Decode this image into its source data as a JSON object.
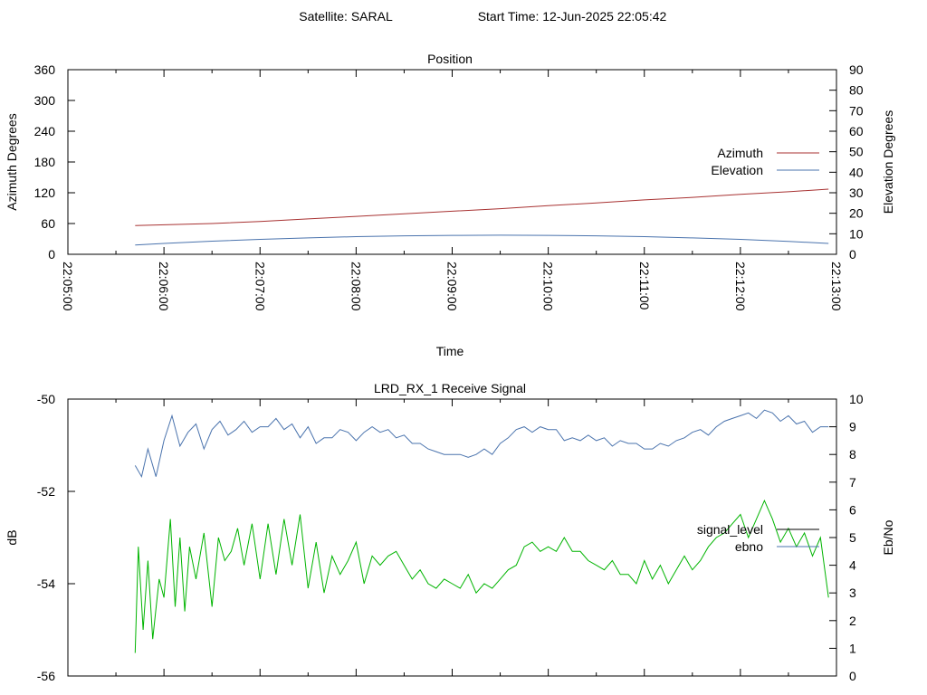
{
  "header": {
    "satellite_text": "Satellite: SARAL",
    "start_text": "Start Time: 12-Jun-2025 22:05:42"
  },
  "colors": {
    "azimuth": "#a83232",
    "elevation": "#4a73ad",
    "signal_level": "#00b400",
    "ebno": "#4a73ad",
    "signal_legend_line": "#000000"
  },
  "chart_data": [
    {
      "type": "line",
      "title": "Position",
      "xlabel": "Time",
      "ylabel": "Azimuth Degrees",
      "y2label": "Elevation Degrees",
      "xlim": [
        "22:05:00",
        "22:13:00"
      ],
      "ylim": [
        0,
        360
      ],
      "y2lim": [
        0,
        90
      ],
      "x_ticks": [
        "22:05:00",
        "22:06:00",
        "22:07:00",
        "22:08:00",
        "22:09:00",
        "22:10:00",
        "22:11:00",
        "22:12:00",
        "22:13:00"
      ],
      "y_ticks": [
        "0",
        "60",
        "120",
        "180",
        "240",
        "300",
        "360"
      ],
      "y2_ticks": [
        "0",
        "10",
        "20",
        "30",
        "40",
        "50",
        "60",
        "70",
        "80",
        "90"
      ],
      "legend_position": "right",
      "series": [
        {
          "name": "Azimuth",
          "axis": "left",
          "x": [
            "22:05:42",
            "22:06:30",
            "22:07:00",
            "22:07:30",
            "22:08:00",
            "22:08:30",
            "22:09:00",
            "22:09:30",
            "22:10:00",
            "22:10:30",
            "22:11:00",
            "22:11:30",
            "22:12:00",
            "22:12:30",
            "22:12:55"
          ],
          "values": [
            56,
            60,
            64,
            69,
            74,
            79,
            84,
            89,
            95,
            100,
            106,
            111,
            117,
            122,
            127
          ]
        },
        {
          "name": "Elevation",
          "axis": "right",
          "x": [
            "22:05:42",
            "22:06:00",
            "22:06:30",
            "22:07:00",
            "22:07:30",
            "22:08:00",
            "22:08:30",
            "22:09:00",
            "22:09:30",
            "22:10:00",
            "22:10:30",
            "22:11:00",
            "22:11:30",
            "22:12:00",
            "22:12:30",
            "22:12:55"
          ],
          "values": [
            4.5,
            5.3,
            6.4,
            7.3,
            8.0,
            8.6,
            9.0,
            9.2,
            9.3,
            9.2,
            9.0,
            8.6,
            8.0,
            7.3,
            6.3,
            5.3
          ]
        }
      ]
    },
    {
      "type": "line",
      "title": "LRD_RX_1 Receive Signal",
      "ylabel": "dB",
      "y2label": "Eb/No",
      "xlim": [
        "22:05:00",
        "22:13:00"
      ],
      "ylim": [
        -56,
        -50
      ],
      "y2lim": [
        0,
        10
      ],
      "y_ticks": [
        "-50",
        "-52",
        "-54",
        "-56"
      ],
      "y2_ticks": [
        "0",
        "1",
        "2",
        "3",
        "4",
        "5",
        "6",
        "7",
        "8",
        "9",
        "10"
      ],
      "legend_position": "right",
      "series": [
        {
          "name": "signal_level",
          "axis": "left",
          "x": [
            "22:05:42",
            "22:05:44",
            "22:05:47",
            "22:05:50",
            "22:05:53",
            "22:05:57",
            "22:06:00",
            "22:06:04",
            "22:06:07",
            "22:06:10",
            "22:06:13",
            "22:06:16",
            "22:06:20",
            "22:06:25",
            "22:06:30",
            "22:06:34",
            "22:06:38",
            "22:06:42",
            "22:06:46",
            "22:06:50",
            "22:06:55",
            "22:07:00",
            "22:07:05",
            "22:07:10",
            "22:07:15",
            "22:07:20",
            "22:07:25",
            "22:07:30",
            "22:07:35",
            "22:07:40",
            "22:07:45",
            "22:07:50",
            "22:07:55",
            "22:08:00",
            "22:08:05",
            "22:08:10",
            "22:08:15",
            "22:08:20",
            "22:08:25",
            "22:08:30",
            "22:08:35",
            "22:08:40",
            "22:08:45",
            "22:08:50",
            "22:08:55",
            "22:09:00",
            "22:09:05",
            "22:09:10",
            "22:09:15",
            "22:09:20",
            "22:09:25",
            "22:09:30",
            "22:09:35",
            "22:09:40",
            "22:09:45",
            "22:09:50",
            "22:09:55",
            "22:10:00",
            "22:10:05",
            "22:10:10",
            "22:10:15",
            "22:10:20",
            "22:10:25",
            "22:10:30",
            "22:10:35",
            "22:10:40",
            "22:10:45",
            "22:10:50",
            "22:10:55",
            "22:11:00",
            "22:11:05",
            "22:11:10",
            "22:11:15",
            "22:11:20",
            "22:11:25",
            "22:11:30",
            "22:11:35",
            "22:11:40",
            "22:11:45",
            "22:11:50",
            "22:11:55",
            "22:12:00",
            "22:12:05",
            "22:12:10",
            "22:12:15",
            "22:12:20",
            "22:12:25",
            "22:12:30",
            "22:12:35",
            "22:12:40",
            "22:12:45",
            "22:12:50",
            "22:12:55"
          ],
          "values": [
            -55.5,
            -53.2,
            -55.0,
            -53.5,
            -55.2,
            -53.9,
            -54.3,
            -52.6,
            -54.5,
            -53.0,
            -54.6,
            -53.2,
            -53.9,
            -52.9,
            -54.5,
            -53.0,
            -53.5,
            -53.3,
            -52.8,
            -53.6,
            -52.7,
            -53.9,
            -52.7,
            -53.8,
            -52.6,
            -53.6,
            -52.5,
            -54.1,
            -53.1,
            -54.2,
            -53.4,
            -53.8,
            -53.5,
            -53.1,
            -54.0,
            -53.4,
            -53.6,
            -53.4,
            -53.3,
            -53.6,
            -53.9,
            -53.7,
            -54.0,
            -54.1,
            -53.9,
            -54.0,
            -54.1,
            -53.8,
            -54.2,
            -54.0,
            -54.1,
            -53.9,
            -53.7,
            -53.6,
            -53.2,
            -53.1,
            -53.3,
            -53.2,
            -53.3,
            -53.0,
            -53.3,
            -53.3,
            -53.5,
            -53.6,
            -53.7,
            -53.5,
            -53.8,
            -53.8,
            -54.0,
            -53.5,
            -53.9,
            -53.6,
            -54.0,
            -53.7,
            -53.4,
            -53.7,
            -53.5,
            -53.2,
            -53.0,
            -52.9,
            -52.7,
            -52.5,
            -53.0,
            -52.6,
            -52.2,
            -52.6,
            -53.1,
            -52.8,
            -53.2,
            -52.9,
            -53.4,
            -53.0,
            -54.3
          ]
        },
        {
          "name": "ebno",
          "axis": "right",
          "x": [
            "22:05:42",
            "22:05:46",
            "22:05:50",
            "22:05:55",
            "22:06:00",
            "22:06:05",
            "22:06:10",
            "22:06:15",
            "22:06:20",
            "22:06:25",
            "22:06:30",
            "22:06:35",
            "22:06:40",
            "22:06:45",
            "22:06:50",
            "22:06:55",
            "22:07:00",
            "22:07:05",
            "22:07:10",
            "22:07:15",
            "22:07:20",
            "22:07:25",
            "22:07:30",
            "22:07:35",
            "22:07:40",
            "22:07:45",
            "22:07:50",
            "22:07:55",
            "22:08:00",
            "22:08:05",
            "22:08:10",
            "22:08:15",
            "22:08:20",
            "22:08:25",
            "22:08:30",
            "22:08:35",
            "22:08:40",
            "22:08:45",
            "22:08:50",
            "22:08:55",
            "22:09:00",
            "22:09:05",
            "22:09:10",
            "22:09:15",
            "22:09:20",
            "22:09:25",
            "22:09:30",
            "22:09:35",
            "22:09:40",
            "22:09:45",
            "22:09:50",
            "22:09:55",
            "22:10:00",
            "22:10:05",
            "22:10:10",
            "22:10:15",
            "22:10:20",
            "22:10:25",
            "22:10:30",
            "22:10:35",
            "22:10:40",
            "22:10:45",
            "22:10:50",
            "22:10:55",
            "22:11:00",
            "22:11:05",
            "22:11:10",
            "22:11:15",
            "22:11:20",
            "22:11:25",
            "22:11:30",
            "22:11:35",
            "22:11:40",
            "22:11:45",
            "22:11:50",
            "22:11:55",
            "22:12:00",
            "22:12:05",
            "22:12:10",
            "22:12:15",
            "22:12:20",
            "22:12:25",
            "22:12:30",
            "22:12:35",
            "22:12:40",
            "22:12:45",
            "22:12:50",
            "22:12:55"
          ],
          "values": [
            7.6,
            7.2,
            8.2,
            7.2,
            8.5,
            9.4,
            8.3,
            8.8,
            9.1,
            8.2,
            8.9,
            9.2,
            8.7,
            8.9,
            9.2,
            8.8,
            9.0,
            9.0,
            9.3,
            8.9,
            9.1,
            8.6,
            9.0,
            8.4,
            8.6,
            8.6,
            8.9,
            8.8,
            8.5,
            8.8,
            9.0,
            8.8,
            8.9,
            8.6,
            8.7,
            8.4,
            8.4,
            8.2,
            8.1,
            8.0,
            8.0,
            8.0,
            7.9,
            8.0,
            8.2,
            8.0,
            8.4,
            8.6,
            8.9,
            9.0,
            8.8,
            9.0,
            8.9,
            8.9,
            8.5,
            8.6,
            8.5,
            8.7,
            8.5,
            8.6,
            8.3,
            8.5,
            8.4,
            8.4,
            8.2,
            8.2,
            8.4,
            8.3,
            8.5,
            8.6,
            8.8,
            8.9,
            8.7,
            9.0,
            9.2,
            9.3,
            9.4,
            9.5,
            9.3,
            9.6,
            9.5,
            9.2,
            9.4,
            9.1,
            9.2,
            8.8,
            9.0,
            9.0
          ]
        }
      ]
    }
  ]
}
